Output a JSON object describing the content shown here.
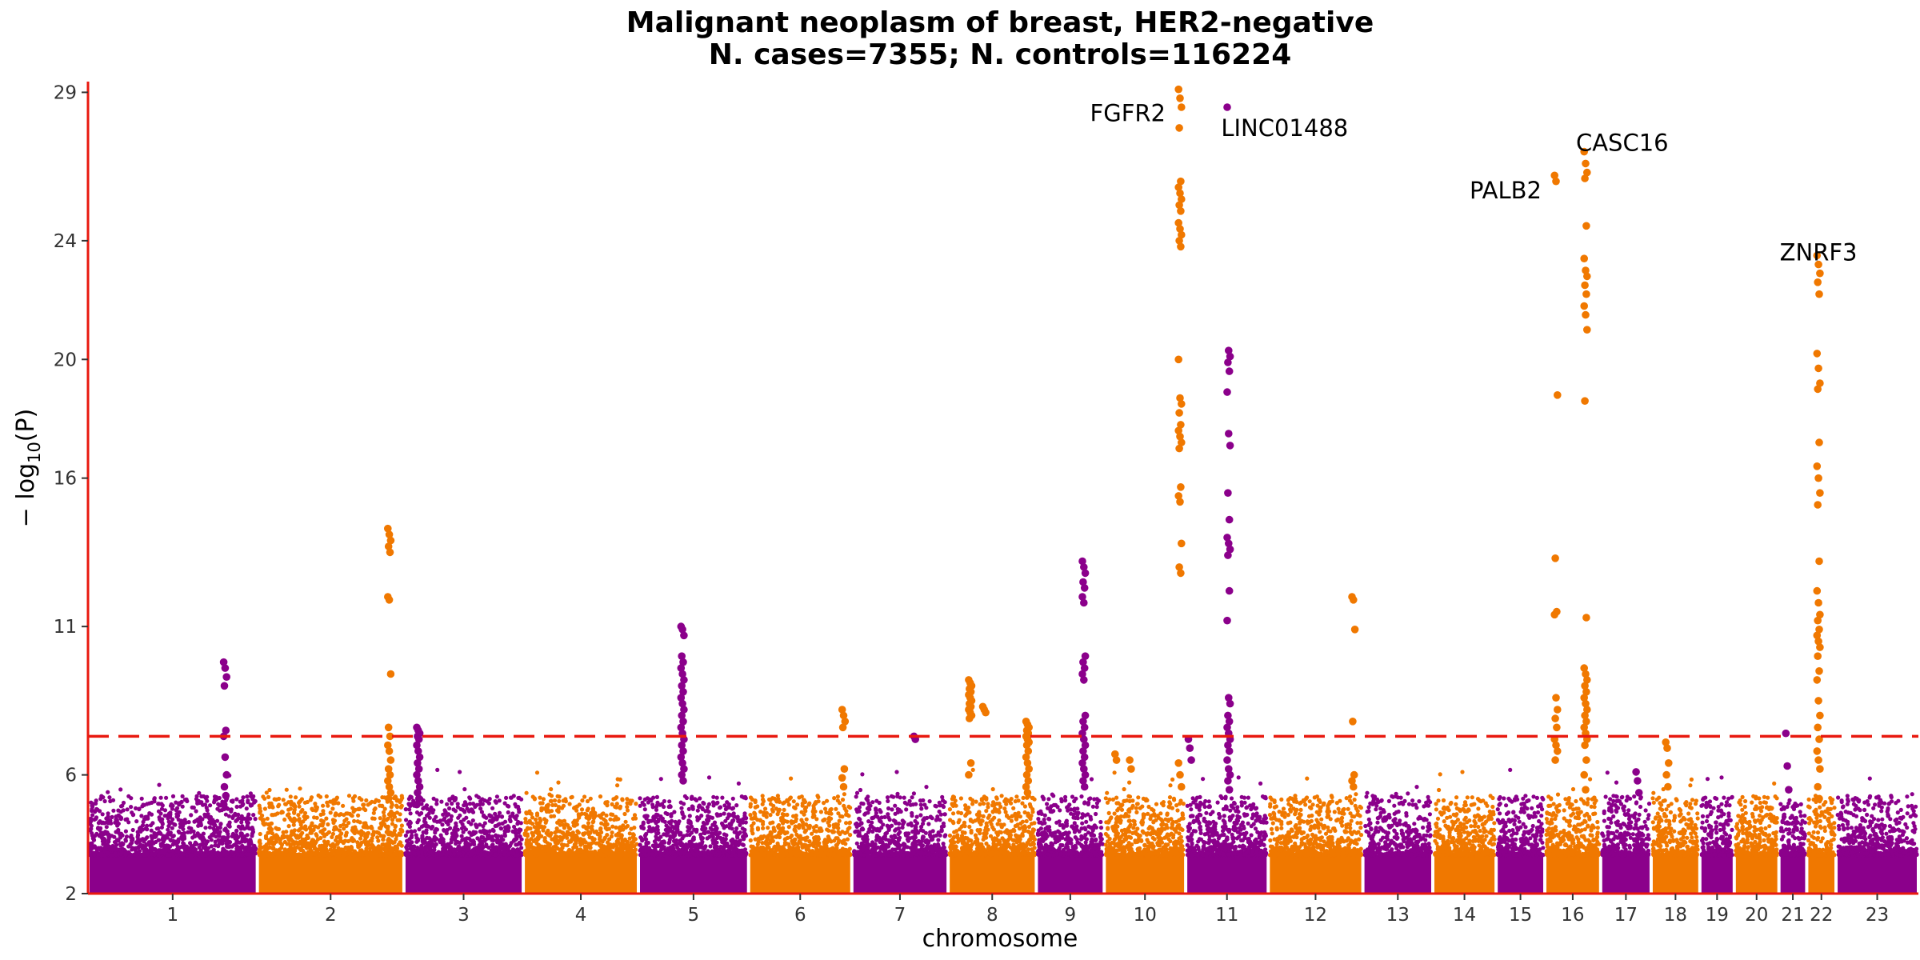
{
  "chart_data": {
    "type": "scatter",
    "subtype": "manhattan",
    "title": "Malignant neoplasm of breast, HER2-negative",
    "subtitle": "N. cases=7355; N. controls=116224",
    "xlabel": "chromosome",
    "ylabel_main": "− log",
    "ylabel_sub": "10",
    "ylabel_tail": "(P)",
    "ylim": [
      2,
      29.2
    ],
    "yticks": [
      2,
      6,
      11,
      16,
      20,
      24,
      29
    ],
    "threshold": 7.3,
    "colors": {
      "odd": "#8b008b",
      "even": "#f07800",
      "threshold": "#e8190f",
      "axis": "#e8190f"
    },
    "chromosomes": [
      {
        "label": "1",
        "start": 0.0,
        "end": 9.25
      },
      {
        "label": "2",
        "start": 9.25,
        "end": 17.26
      },
      {
        "label": "3",
        "start": 17.26,
        "end": 23.78
      },
      {
        "label": "4",
        "start": 23.78,
        "end": 30.07
      },
      {
        "label": "5",
        "start": 30.07,
        "end": 36.09
      },
      {
        "label": "6",
        "start": 36.09,
        "end": 41.73
      },
      {
        "label": "7",
        "start": 41.73,
        "end": 46.99
      },
      {
        "label": "8",
        "start": 46.99,
        "end": 51.81
      },
      {
        "label": "9",
        "start": 51.81,
        "end": 55.52
      },
      {
        "label": "10",
        "start": 55.52,
        "end": 59.97
      },
      {
        "label": "11",
        "start": 59.97,
        "end": 64.48
      },
      {
        "label": "12",
        "start": 64.48,
        "end": 69.65
      },
      {
        "label": "13",
        "start": 69.65,
        "end": 73.47
      },
      {
        "label": "14",
        "start": 73.47,
        "end": 76.93
      },
      {
        "label": "15",
        "start": 76.93,
        "end": 79.59
      },
      {
        "label": "16",
        "start": 79.59,
        "end": 82.64
      },
      {
        "label": "17",
        "start": 82.64,
        "end": 85.4
      },
      {
        "label": "18",
        "start": 85.4,
        "end": 88.06
      },
      {
        "label": "19",
        "start": 88.06,
        "end": 89.94
      },
      {
        "label": "20",
        "start": 89.94,
        "end": 92.38
      },
      {
        "label": "21",
        "start": 92.38,
        "end": 93.9
      },
      {
        "label": "22",
        "start": 93.9,
        "end": 95.5
      },
      {
        "label": "23",
        "start": 95.5,
        "end": 100.0
      }
    ],
    "peaks": [
      {
        "chrom": "1",
        "pos": 0.81,
        "values": [
          9.8,
          9.6,
          9.3,
          9.0,
          7.5,
          7.3,
          6.6,
          6.0,
          5.6,
          5.3,
          5.0
        ]
      },
      {
        "chrom": "2",
        "pos": 0.9,
        "values": [
          14.3,
          14.1,
          13.9,
          13.7,
          13.5,
          12.0,
          11.9,
          9.4,
          7.6,
          7.3,
          7.0,
          6.8,
          6.5,
          6.2,
          6.0,
          5.8,
          5.6,
          5.4,
          5.2
        ]
      },
      {
        "chrom": "3",
        "pos": 0.12,
        "values": [
          7.6,
          7.5,
          7.4,
          7.3,
          7.2,
          7.0,
          6.8,
          6.6,
          6.4,
          6.2,
          6.0,
          5.8,
          5.6,
          5.4,
          5.2,
          5.0
        ]
      },
      {
        "chrom": "5",
        "pos": 0.4,
        "values": [
          11.0,
          10.9,
          10.7,
          10.0,
          9.8,
          9.6,
          9.4,
          9.2,
          9.0,
          8.8,
          8.6,
          8.4,
          8.2,
          8.0,
          7.8,
          7.6,
          7.4,
          7.2,
          7.0,
          6.8,
          6.6,
          6.4,
          6.2,
          6.0,
          5.8
        ]
      },
      {
        "chrom": "6",
        "pos": 0.92,
        "values": [
          8.2,
          8.0,
          7.8,
          7.6,
          6.2,
          5.9,
          5.6
        ]
      },
      {
        "chrom": "7",
        "pos": 0.66,
        "values": [
          7.3,
          7.2
        ]
      },
      {
        "chrom": "8",
        "pos": 0.25,
        "values": [
          9.2,
          9.1,
          9.0,
          8.9,
          8.8,
          8.7,
          8.6,
          8.5,
          8.4,
          8.3,
          8.2,
          8.1,
          8.0,
          7.9,
          6.4,
          6.0
        ]
      },
      {
        "chrom": "8",
        "pos": 0.41,
        "values": [
          8.3,
          8.2,
          8.1
        ]
      },
      {
        "chrom": "8",
        "pos": 0.9,
        "values": [
          7.8,
          7.7,
          7.6,
          7.5,
          7.4,
          7.3,
          7.2,
          7.1,
          7.0,
          6.8,
          6.6,
          6.4,
          6.2,
          6.0,
          5.8,
          5.6,
          5.4
        ]
      },
      {
        "chrom": "9",
        "pos": 0.7,
        "values": [
          13.2,
          13.0,
          12.8,
          12.5,
          12.3,
          12.0,
          11.8,
          10.0,
          9.8,
          9.6,
          9.4,
          9.2,
          8.0,
          7.8,
          7.6,
          7.4,
          7.2,
          7.0,
          6.8,
          6.6,
          6.4,
          6.2,
          6.0,
          5.8,
          5.6
        ]
      },
      {
        "chrom": "10",
        "pos": 0.15,
        "values": [
          6.7,
          6.5
        ]
      },
      {
        "chrom": "10",
        "pos": 0.33,
        "values": [
          6.5,
          6.2
        ]
      },
      {
        "chrom": "10",
        "pos": 0.93,
        "values": [
          29.1,
          28.8,
          28.5,
          27.8,
          26.0,
          25.8,
          25.6,
          25.4,
          25.2,
          25.0,
          24.6,
          24.4,
          24.2,
          24.0,
          23.8,
          20.0,
          18.7,
          18.5,
          18.2,
          17.8,
          17.6,
          17.4,
          17.2,
          17.0,
          15.7,
          15.4,
          15.2,
          13.8,
          13.0,
          12.8,
          6.4,
          6.0,
          5.6
        ]
      },
      {
        "chrom": "11",
        "pos": 0.05,
        "values": [
          7.2,
          6.9,
          6.5
        ]
      },
      {
        "chrom": "11",
        "pos": 0.52,
        "values": [
          28.5,
          20.3,
          20.1,
          19.9,
          19.6,
          18.9,
          17.5,
          17.1,
          15.5,
          14.6,
          14.0,
          13.8,
          13.6,
          13.4,
          12.2,
          11.2,
          8.6,
          8.4,
          8.0,
          7.8,
          7.6,
          7.4,
          7.2,
          7.0,
          6.8,
          6.5,
          6.2,
          6.0,
          5.8,
          5.5
        ]
      },
      {
        "chrom": "12",
        "pos": 0.9,
        "values": [
          12.0,
          11.9,
          10.9,
          7.8,
          6.0,
          5.8,
          5.6
        ]
      },
      {
        "chrom": "16",
        "pos": 0.2,
        "values": [
          26.2,
          26.0,
          18.8,
          13.3,
          11.5,
          11.4,
          8.6,
          8.2,
          7.9,
          7.6,
          7.2,
          7.0,
          6.8,
          6.5
        ]
      },
      {
        "chrom": "16",
        "pos": 0.73,
        "values": [
          27.0,
          26.6,
          26.3,
          26.1,
          24.5,
          23.4,
          23.0,
          22.8,
          22.5,
          22.2,
          21.8,
          21.5,
          21.0,
          18.6,
          11.3,
          9.6,
          9.4,
          9.2,
          9.0,
          8.8,
          8.6,
          8.4,
          8.2,
          8.0,
          7.8,
          7.6,
          7.4,
          7.2,
          7.0,
          6.5,
          6.0,
          5.5
        ]
      },
      {
        "chrom": "17",
        "pos": 0.73,
        "values": [
          6.1,
          5.8,
          5.4
        ]
      },
      {
        "chrom": "18",
        "pos": 0.33,
        "values": [
          7.1,
          6.9,
          6.4,
          6.0,
          5.6
        ]
      },
      {
        "chrom": "21",
        "pos": 0.3,
        "values": [
          7.4,
          6.3,
          5.5
        ]
      },
      {
        "chrom": "22",
        "pos": 0.4,
        "values": [
          23.5,
          23.2,
          22.9,
          22.6,
          22.2,
          20.2,
          19.7,
          19.2,
          19.0,
          17.2,
          16.4,
          16.0,
          15.5,
          15.1,
          13.2,
          12.2,
          11.8,
          11.4,
          11.2,
          10.9,
          10.7,
          10.5,
          10.3,
          10.0,
          9.5,
          9.2,
          8.5,
          8.0,
          7.6,
          7.2,
          6.8,
          6.5,
          6.2,
          5.6,
          5.2
        ]
      }
    ],
    "annotations": [
      {
        "label": "FGFR2",
        "x_chrom": "10",
        "pos": 0.93,
        "y": 28.3,
        "anchor": "end",
        "dx": -18
      },
      {
        "label": "LINC01488",
        "x_chrom": "11",
        "pos": 0.52,
        "y": 27.8,
        "anchor": "middle",
        "dx": 70
      },
      {
        "label": "PALB2",
        "x_chrom": "16",
        "pos": 0.2,
        "y": 25.7,
        "anchor": "end",
        "dx": -18
      },
      {
        "label": "CASC16",
        "x_chrom": "16",
        "pos": 0.73,
        "y": 27.3,
        "anchor": "start",
        "dx": -12
      },
      {
        "label": "ZNRF3",
        "x_chrom": "22",
        "pos": 0.4,
        "y": 23.6,
        "anchor": "middle",
        "dx": 0
      }
    ]
  }
}
